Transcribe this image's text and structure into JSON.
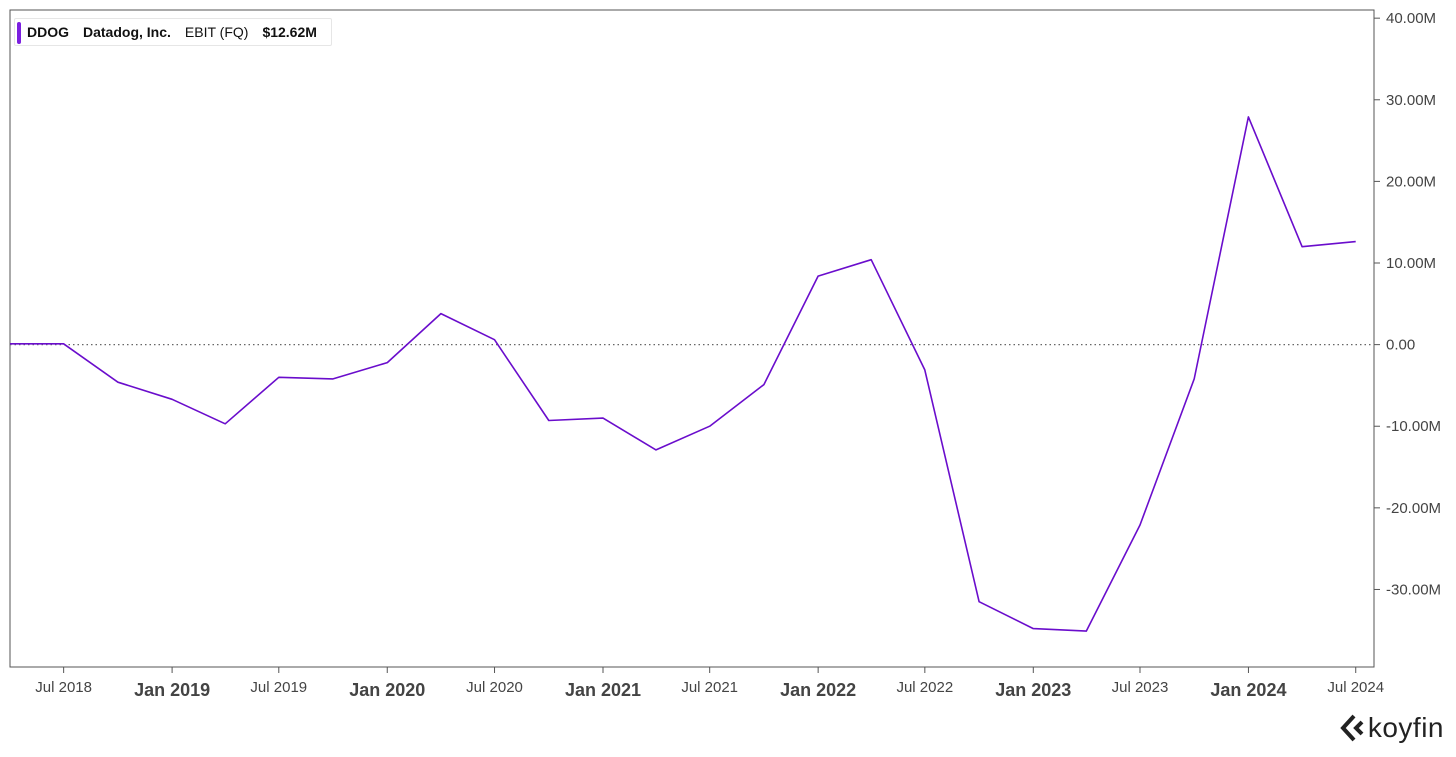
{
  "legend": {
    "ticker": "DDOG",
    "company": "Datadog, Inc.",
    "metric": "EBIT (FQ)",
    "value": "$12.62M"
  },
  "brand": {
    "name": "koyfin",
    "icon": "koyfin-logo-icon"
  },
  "colors": {
    "series": "#6a0dcc",
    "swatch": "#7b1fe0",
    "axis": "#555555",
    "tick_label": "#444444",
    "zero_line": "#666666"
  },
  "chart_data": {
    "type": "line",
    "title": "",
    "xlabel": "",
    "ylabel": "",
    "grid": false,
    "zero_line": "dotted",
    "y_axis_side": "right",
    "legend_position": "top-left",
    "x_range": [
      "2018-04-01",
      "2024-08-01"
    ],
    "ylim": [
      -39.5,
      41
    ],
    "y_ticks": [
      {
        "value": 40,
        "label": "40.00M"
      },
      {
        "value": 30,
        "label": "30.00M"
      },
      {
        "value": 20,
        "label": "20.00M"
      },
      {
        "value": 10,
        "label": "10.00M"
      },
      {
        "value": 0,
        "label": "0.00"
      },
      {
        "value": -10,
        "label": "-10.00M"
      },
      {
        "value": -20,
        "label": "-20.00M"
      },
      {
        "value": -30,
        "label": "-30.00M"
      }
    ],
    "x_ticks": [
      {
        "date": "2018-07-01",
        "label": "Jul 2018",
        "major": false
      },
      {
        "date": "2019-01-01",
        "label": "Jan 2019",
        "major": true
      },
      {
        "date": "2019-07-01",
        "label": "Jul 2019",
        "major": false
      },
      {
        "date": "2020-01-01",
        "label": "Jan 2020",
        "major": true
      },
      {
        "date": "2020-07-01",
        "label": "Jul 2020",
        "major": false
      },
      {
        "date": "2021-01-01",
        "label": "Jan 2021",
        "major": true
      },
      {
        "date": "2021-07-01",
        "label": "Jul 2021",
        "major": false
      },
      {
        "date": "2022-01-01",
        "label": "Jan 2022",
        "major": true
      },
      {
        "date": "2022-07-01",
        "label": "Jul 2022",
        "major": false
      },
      {
        "date": "2023-01-01",
        "label": "Jan 2023",
        "major": true
      },
      {
        "date": "2023-07-01",
        "label": "Jul 2023",
        "major": false
      },
      {
        "date": "2024-01-01",
        "label": "Jan 2024",
        "major": true
      },
      {
        "date": "2024-07-01",
        "label": "Jul 2024",
        "major": false
      }
    ],
    "series": [
      {
        "name": "",
        "points": [
          {
            "x": "2018-04-01",
            "y": 0.1
          },
          {
            "x": "2018-07-01",
            "y": 0.1
          },
          {
            "x": "2018-10-01",
            "y": -4.6
          },
          {
            "x": "2019-01-01",
            "y": -6.7
          },
          {
            "x": "2019-04-01",
            "y": -9.7
          },
          {
            "x": "2019-07-01",
            "y": -4.0
          },
          {
            "x": "2019-10-01",
            "y": -4.2
          },
          {
            "x": "2020-01-01",
            "y": -2.2
          },
          {
            "x": "2020-04-01",
            "y": 3.8
          },
          {
            "x": "2020-07-01",
            "y": 0.6
          },
          {
            "x": "2020-10-01",
            "y": -9.3
          },
          {
            "x": "2021-01-01",
            "y": -9.0
          },
          {
            "x": "2021-04-01",
            "y": -12.9
          },
          {
            "x": "2021-07-01",
            "y": -10.0
          },
          {
            "x": "2021-10-01",
            "y": -4.9
          },
          {
            "x": "2022-01-01",
            "y": 8.4
          },
          {
            "x": "2022-04-01",
            "y": 10.4
          },
          {
            "x": "2022-07-01",
            "y": -3.1
          },
          {
            "x": "2022-10-01",
            "y": -31.5
          },
          {
            "x": "2023-01-01",
            "y": -34.8
          },
          {
            "x": "2023-04-01",
            "y": -35.1
          },
          {
            "x": "2023-07-01",
            "y": -22.1
          },
          {
            "x": "2023-10-01",
            "y": -4.2
          },
          {
            "x": "2024-01-01",
            "y": 27.9
          },
          {
            "x": "2024-04-01",
            "y": 12.0
          },
          {
            "x": "2024-07-01",
            "y": 12.62
          }
        ]
      }
    ]
  }
}
